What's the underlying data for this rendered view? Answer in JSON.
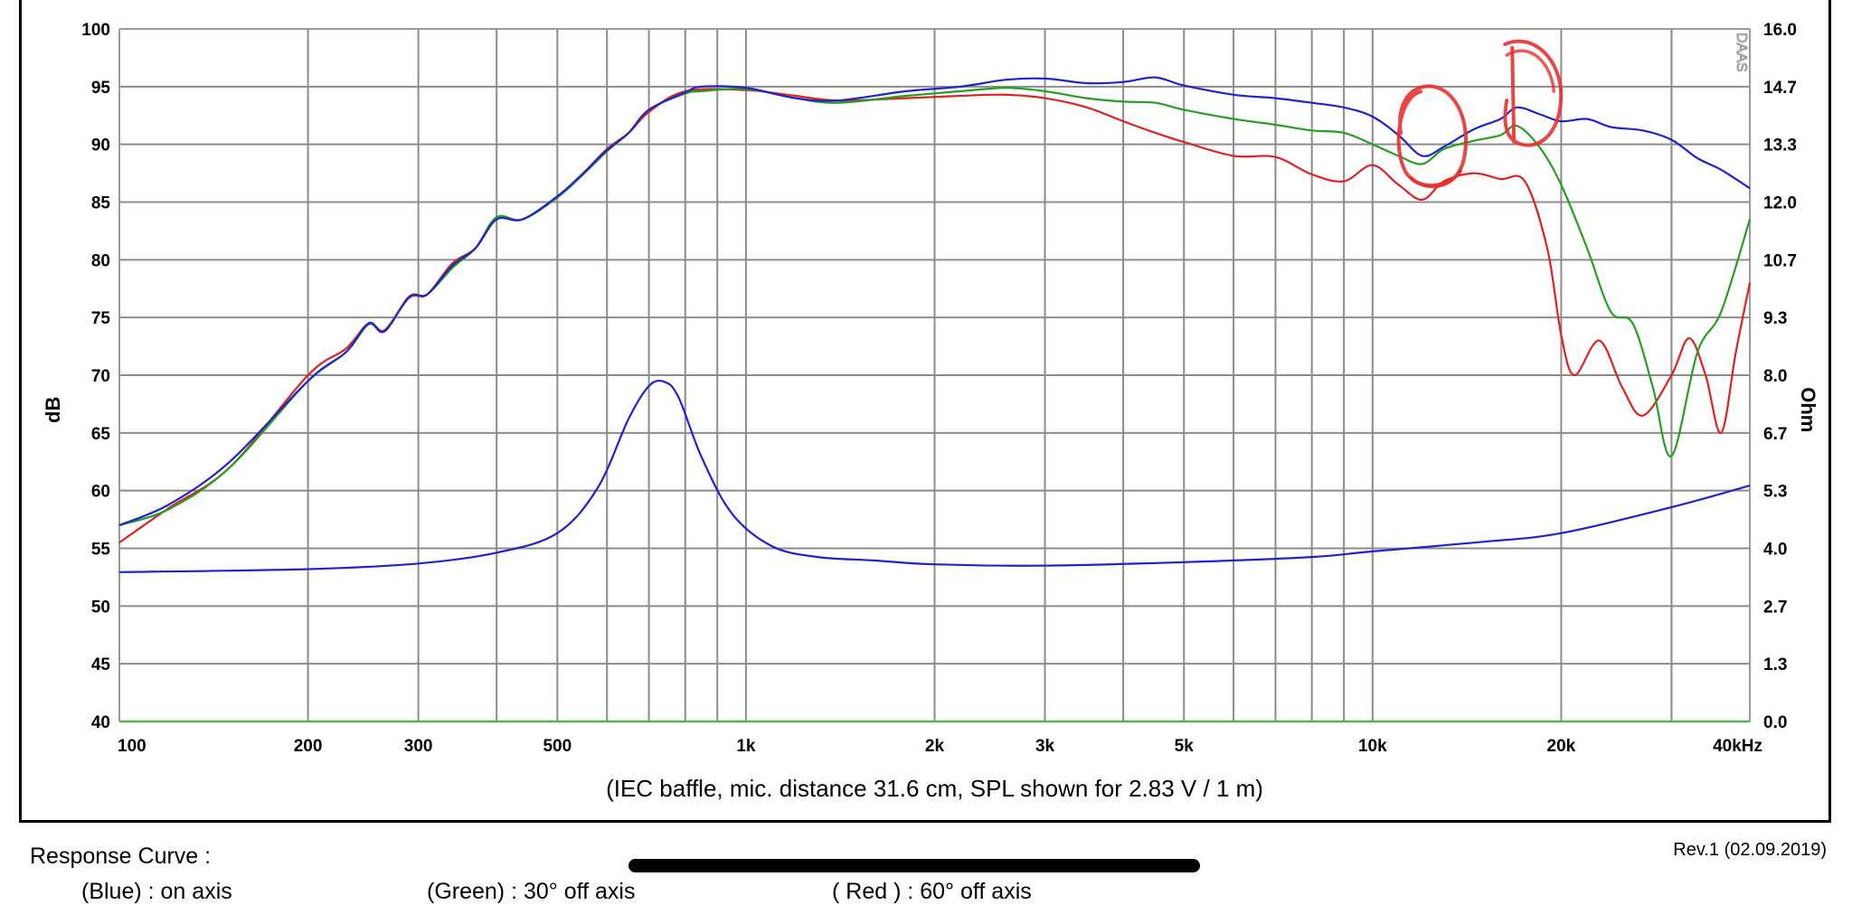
{
  "chart_data": {
    "type": "line",
    "title": "",
    "xlabel": "",
    "ylabel": "dB",
    "y2label": "Ohm",
    "x_scale": "log",
    "xlim": [
      100,
      40000
    ],
    "ylim": [
      40,
      100
    ],
    "y2lim": [
      0,
      16
    ],
    "x_ticks": [
      {
        "value": 100,
        "label": "100"
      },
      {
        "value": 200,
        "label": "200"
      },
      {
        "value": 300,
        "label": "300"
      },
      {
        "value": 500,
        "label": "500"
      },
      {
        "value": 1000,
        "label": "1k"
      },
      {
        "value": 2000,
        "label": "2k"
      },
      {
        "value": 3000,
        "label": "3k"
      },
      {
        "value": 5000,
        "label": "5k"
      },
      {
        "value": 10000,
        "label": "10k"
      },
      {
        "value": 20000,
        "label": "20k"
      },
      {
        "value": 40000,
        "label": "40kHz"
      }
    ],
    "y_ticks": [
      "40",
      "45",
      "50",
      "55",
      "60",
      "65",
      "70",
      "75",
      "80",
      "85",
      "90",
      "95",
      "100"
    ],
    "y2_ticks": [
      "0.0",
      "1.3",
      "2.7",
      "4.0",
      "5.3",
      "6.7",
      "8.0",
      "9.3",
      "10.7",
      "12.0",
      "13.3",
      "14.7",
      "16.0"
    ],
    "grid": true,
    "watermark": "DAAS",
    "note": "(IEC baffle, mic. distance 31.6 cm, SPL shown for 2.83 V / 1 m)",
    "series": [
      {
        "name": "on axis",
        "color": "#2222cc",
        "axis": "left",
        "points": [
          [
            100,
            57
          ],
          [
            120,
            58.8
          ],
          [
            150,
            62.5
          ],
          [
            200,
            69.5
          ],
          [
            230,
            72
          ],
          [
            250,
            74.5
          ],
          [
            265,
            73.8
          ],
          [
            290,
            76.8
          ],
          [
            310,
            77
          ],
          [
            340,
            79.5
          ],
          [
            370,
            81
          ],
          [
            400,
            83.5
          ],
          [
            440,
            83.5
          ],
          [
            500,
            85.5
          ],
          [
            550,
            87.5
          ],
          [
            600,
            89.5
          ],
          [
            650,
            91
          ],
          [
            700,
            93
          ],
          [
            800,
            94.5
          ],
          [
            850,
            95
          ],
          [
            1000,
            94.9
          ],
          [
            1200,
            94
          ],
          [
            1400,
            93.8
          ],
          [
            1800,
            94.6
          ],
          [
            2200,
            95
          ],
          [
            2600,
            95.6
          ],
          [
            3000,
            95.7
          ],
          [
            3500,
            95.3
          ],
          [
            4000,
            95.4
          ],
          [
            4500,
            95.8
          ],
          [
            5000,
            95.1
          ],
          [
            6000,
            94.3
          ],
          [
            7000,
            94
          ],
          [
            8000,
            93.6
          ],
          [
            9000,
            93.2
          ],
          [
            10000,
            92.4
          ],
          [
            11000,
            90.8
          ],
          [
            12000,
            89
          ],
          [
            13000,
            89.8
          ],
          [
            14500,
            91.3
          ],
          [
            16000,
            92.2
          ],
          [
            17000,
            93.2
          ],
          [
            18500,
            92.6
          ],
          [
            20000,
            92
          ],
          [
            22000,
            92.2
          ],
          [
            24000,
            91.5
          ],
          [
            27000,
            91.2
          ],
          [
            30000,
            90.4
          ],
          [
            33000,
            88.8
          ],
          [
            36000,
            87.8
          ],
          [
            40000,
            86.2
          ]
        ]
      },
      {
        "name": "30° off axis",
        "color": "#22a022",
        "axis": "left",
        "points": [
          [
            100,
            57
          ],
          [
            120,
            58.4
          ],
          [
            150,
            62
          ],
          [
            200,
            69.5
          ],
          [
            230,
            72
          ],
          [
            250,
            74.4
          ],
          [
            265,
            73.8
          ],
          [
            290,
            76.8
          ],
          [
            310,
            77
          ],
          [
            340,
            79.3
          ],
          [
            370,
            81
          ],
          [
            400,
            83.7
          ],
          [
            440,
            83.5
          ],
          [
            500,
            85.4
          ],
          [
            550,
            87.4
          ],
          [
            600,
            89.4
          ],
          [
            650,
            91
          ],
          [
            700,
            93
          ],
          [
            800,
            94.4
          ],
          [
            850,
            94.6
          ],
          [
            1000,
            94.8
          ],
          [
            1200,
            94
          ],
          [
            1400,
            93.6
          ],
          [
            1800,
            94.2
          ],
          [
            2200,
            94.6
          ],
          [
            2600,
            94.9
          ],
          [
            3000,
            94.6
          ],
          [
            3500,
            94
          ],
          [
            4000,
            93.7
          ],
          [
            4500,
            93.6
          ],
          [
            5000,
            93
          ],
          [
            6000,
            92.2
          ],
          [
            7000,
            91.7
          ],
          [
            8000,
            91.2
          ],
          [
            9000,
            91
          ],
          [
            10000,
            90
          ],
          [
            11000,
            89
          ],
          [
            12000,
            88.3
          ],
          [
            13000,
            89.6
          ],
          [
            14500,
            90.3
          ],
          [
            16000,
            90.8
          ],
          [
            17000,
            91.6
          ],
          [
            18500,
            89.7
          ],
          [
            20000,
            86.5
          ],
          [
            22000,
            81
          ],
          [
            24000,
            75.5
          ],
          [
            26000,
            74.5
          ],
          [
            28000,
            69
          ],
          [
            30000,
            63
          ],
          [
            33000,
            72
          ],
          [
            36000,
            75.5
          ],
          [
            40000,
            83.5
          ]
        ]
      },
      {
        "name": "60° off axis",
        "color": "#dd2222",
        "axis": "left",
        "points": [
          [
            100,
            55.5
          ],
          [
            120,
            58.5
          ],
          [
            150,
            62
          ],
          [
            200,
            70
          ],
          [
            230,
            72.3
          ],
          [
            250,
            74.5
          ],
          [
            265,
            73.9
          ],
          [
            290,
            76.7
          ],
          [
            310,
            77
          ],
          [
            340,
            79.7
          ],
          [
            370,
            81
          ],
          [
            400,
            83.5
          ],
          [
            440,
            83.5
          ],
          [
            500,
            85.4
          ],
          [
            550,
            87.5
          ],
          [
            600,
            89.6
          ],
          [
            650,
            91
          ],
          [
            700,
            92.8
          ],
          [
            800,
            94.6
          ],
          [
            1000,
            94.7
          ],
          [
            1200,
            94.2
          ],
          [
            1400,
            93.8
          ],
          [
            1800,
            94
          ],
          [
            2200,
            94.2
          ],
          [
            2600,
            94.3
          ],
          [
            3000,
            94
          ],
          [
            3500,
            93.2
          ],
          [
            4000,
            92
          ],
          [
            4500,
            91
          ],
          [
            5000,
            90.2
          ],
          [
            6000,
            89
          ],
          [
            7000,
            88.9
          ],
          [
            8000,
            87.4
          ],
          [
            9000,
            86.8
          ],
          [
            10000,
            88.2
          ],
          [
            11000,
            86.5
          ],
          [
            12000,
            85.2
          ],
          [
            13000,
            86.8
          ],
          [
            14500,
            87.5
          ],
          [
            16000,
            87
          ],
          [
            17500,
            86.8
          ],
          [
            19000,
            81
          ],
          [
            20000,
            73.5
          ],
          [
            21000,
            70
          ],
          [
            23000,
            73
          ],
          [
            25000,
            69
          ],
          [
            27000,
            66.5
          ],
          [
            30000,
            70
          ],
          [
            32000,
            73.2
          ],
          [
            34000,
            70
          ],
          [
            36000,
            65
          ],
          [
            38000,
            72
          ],
          [
            40000,
            78
          ]
        ]
      },
      {
        "name": "impedance",
        "color": "#2222cc",
        "axis": "right",
        "points": [
          [
            100,
            3.45
          ],
          [
            200,
            3.52
          ],
          [
            300,
            3.65
          ],
          [
            400,
            3.9
          ],
          [
            500,
            4.35
          ],
          [
            580,
            5.4
          ],
          [
            650,
            7
          ],
          [
            700,
            7.75
          ],
          [
            740,
            7.85
          ],
          [
            780,
            7.5
          ],
          [
            850,
            6.1
          ],
          [
            950,
            4.8
          ],
          [
            1100,
            4.05
          ],
          [
            1300,
            3.8
          ],
          [
            1600,
            3.72
          ],
          [
            2000,
            3.63
          ],
          [
            3000,
            3.6
          ],
          [
            5000,
            3.68
          ],
          [
            8000,
            3.8
          ],
          [
            10000,
            3.93
          ],
          [
            15000,
            4.15
          ],
          [
            20000,
            4.35
          ],
          [
            30000,
            4.95
          ],
          [
            40000,
            5.45
          ]
        ]
      }
    ]
  },
  "footer": {
    "revision": "Rev.1 (02.09.2019)",
    "response_title": "Response Curve :",
    "legend": [
      {
        "key": "(Blue)",
        "text": ": on axis"
      },
      {
        "key": "(Green)",
        "text": ": 30° off axis"
      },
      {
        "key": "( Red )",
        "text": ": 60° off axis"
      }
    ]
  },
  "annotations": {
    "color": "#e83030",
    "highlights": [
      {
        "shape": "circle",
        "frequency": 12500,
        "db": 90.5
      },
      {
        "shape": "loop",
        "frequency": 17500,
        "db": 93.5
      }
    ]
  }
}
